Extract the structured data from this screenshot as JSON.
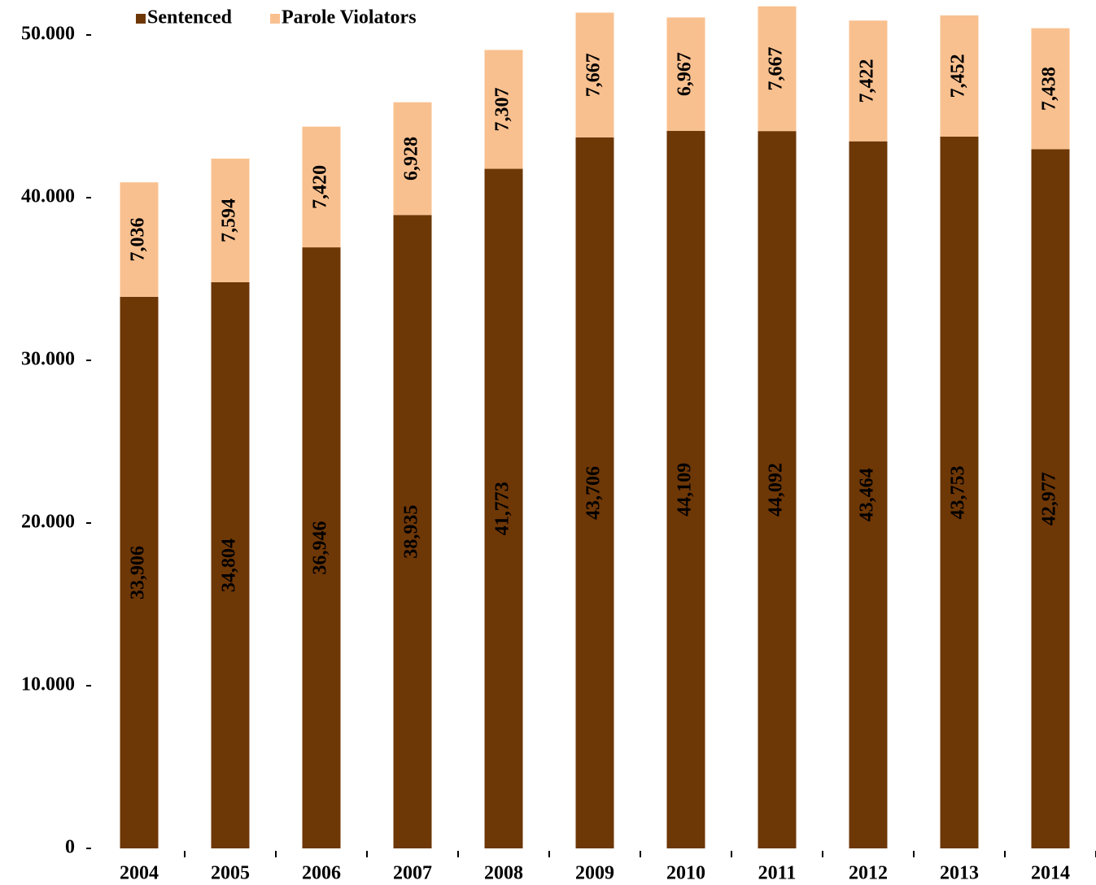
{
  "chart_data": {
    "type": "stacked_bar",
    "categories": [
      "2004",
      "2005",
      "2006",
      "2007",
      "2008",
      "2009",
      "2010",
      "2011",
      "2012",
      "2013",
      "2014"
    ],
    "series": [
      {
        "name": "Sentenced",
        "color": "#6e3706",
        "values": [
          33906,
          34804,
          36946,
          38935,
          41773,
          43706,
          44109,
          44092,
          43464,
          43753,
          42977
        ],
        "value_labels": [
          "33,906",
          "34,804",
          "36,946",
          "38,935",
          "41,773",
          "43,706",
          "44,109",
          "44,092",
          "43,464",
          "43,753",
          "42,977"
        ]
      },
      {
        "name": "Parole Violators",
        "color": "#f9c08f",
        "values": [
          7036,
          7594,
          7420,
          6928,
          7307,
          7667,
          6967,
          7667,
          7422,
          7452,
          7438
        ],
        "value_labels": [
          "7,036",
          "7,594",
          "7,420",
          "6,928",
          "7,307",
          "7,667",
          "6,967",
          "7,667",
          "7,422",
          "7,452",
          "7,438"
        ]
      }
    ],
    "ylim": [
      0,
      52150
    ],
    "yticks": [
      0,
      {
        "value": 10000,
        "label": "10.000"
      },
      {
        "value": 20000,
        "label": "20.000"
      },
      {
        "value": 30000,
        "label": "30.000"
      },
      {
        "value": 40000,
        "label": "40.000"
      },
      {
        "value": 50000,
        "label": "50.000"
      }
    ],
    "legend": "top-left"
  }
}
